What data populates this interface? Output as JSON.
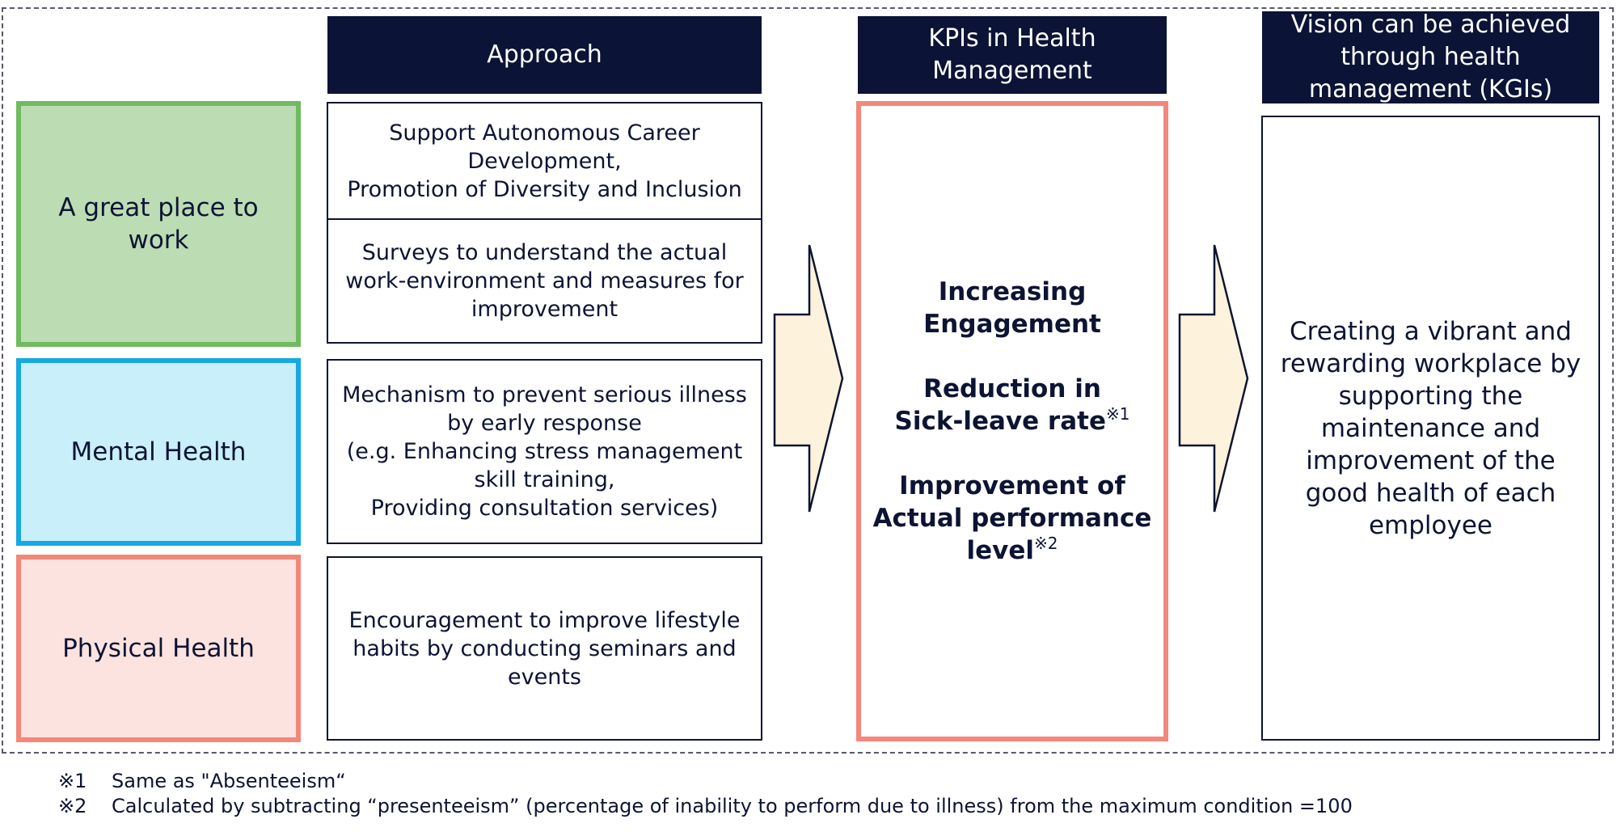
{
  "headers": {
    "approach": "Approach",
    "kpis": "KPIs in Health Management",
    "vision": "Vision can be achieved through health management (KGIs)"
  },
  "categories": [
    "A great place to work",
    "Mental Health",
    "Physical Health"
  ],
  "approaches": [
    "Support Autonomous Career Development,\nPromotion of Diversity and Inclusion",
    "Surveys to understand the actual work-environment and measures for improvement",
    "Mechanism to prevent serious illness by early response\n(e.g.  Enhancing stress management skill training,\nProviding consultation services)",
    "Encouragement to improve lifestyle habits by conducting seminars and events"
  ],
  "kpis": {
    "item1": "Increasing Engagement",
    "item2": "Reduction in Sick-leave rate",
    "item2_note": "※1",
    "item3": "Improvement of Actual performance level",
    "item3_note": "※2"
  },
  "vision_text": "Creating a vibrant and rewarding workplace by supporting the maintenance and improvement of the good health of each employee",
  "footnotes": [
    {
      "mark": "※1",
      "text": "Same as \"Absenteeism“"
    },
    {
      "mark": "※2",
      "text": "Calculated by subtracting “presenteeism” (percentage of inability to perform due to illness) from the maximum condition =100"
    }
  ],
  "colors": {
    "navy": "#0b1336",
    "green_fill": "#bcdcb4",
    "green_border": "#6fbc5e",
    "blue_fill": "#c9effb",
    "blue_border": "#16a9e1",
    "pink_fill": "#fde3df",
    "pink_border": "#f2877a",
    "arrow_fill": "#fdf3dc"
  }
}
